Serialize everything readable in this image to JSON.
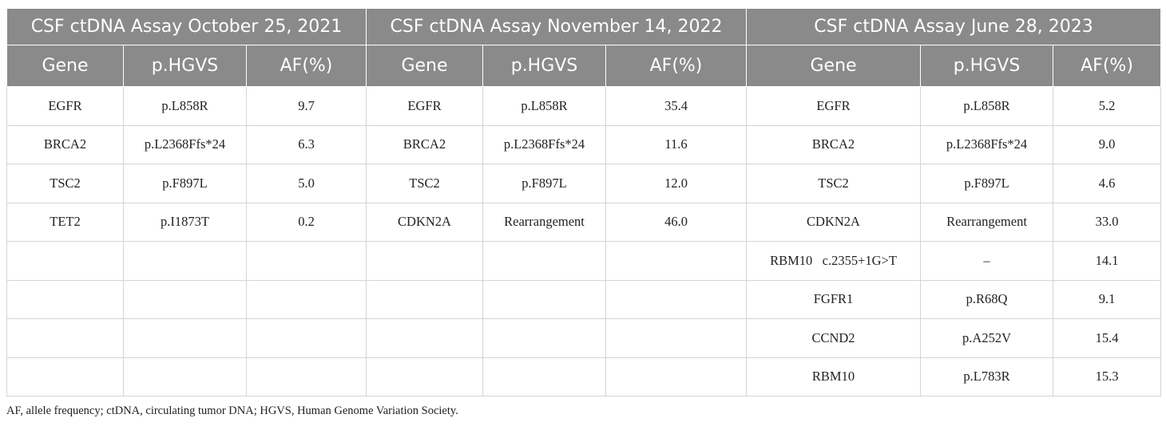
{
  "table": {
    "groups": [
      {
        "title": "CSF ctDNA Assay October 25, 2021"
      },
      {
        "title": "CSF ctDNA Assay November 14, 2022"
      },
      {
        "title": "CSF ctDNA Assay June 28, 2023"
      }
    ],
    "columns": [
      "Gene",
      "p.HGVS",
      "AF(%)"
    ],
    "rows": [
      [
        [
          "EGFR",
          "p.L858R",
          "9.7"
        ],
        [
          "EGFR",
          "p.L858R",
          "35.4"
        ],
        [
          "EGFR",
          "p.L858R",
          "5.2"
        ]
      ],
      [
        [
          "BRCA2",
          "p.L2368Ffs*24",
          "6.3"
        ],
        [
          "BRCA2",
          "p.L2368Ffs*24",
          "11.6"
        ],
        [
          "BRCA2",
          "p.L2368Ffs*24",
          "9.0"
        ]
      ],
      [
        [
          "TSC2",
          "p.F897L",
          "5.0"
        ],
        [
          "TSC2",
          "p.F897L",
          "12.0"
        ],
        [
          "TSC2",
          "p.F897L",
          "4.6"
        ]
      ],
      [
        [
          "TET2",
          "p.I1873T",
          "0.2"
        ],
        [
          "CDKN2A",
          "Rearrangement",
          "46.0"
        ],
        [
          "CDKN2A",
          "Rearrangement",
          "33.0"
        ]
      ],
      [
        [
          "",
          "",
          ""
        ],
        [
          "",
          "",
          ""
        ],
        [
          "RBM10   c.2355+1G>T",
          "–",
          "14.1"
        ]
      ],
      [
        [
          "",
          "",
          ""
        ],
        [
          "",
          "",
          ""
        ],
        [
          "FGFR1",
          "p.R68Q",
          "9.1"
        ]
      ],
      [
        [
          "",
          "",
          ""
        ],
        [
          "",
          "",
          ""
        ],
        [
          "CCND2",
          "p.A252V",
          "15.4"
        ]
      ],
      [
        [
          "",
          "",
          ""
        ],
        [
          "",
          "",
          ""
        ],
        [
          "RBM10",
          "p.L783R",
          "15.3"
        ]
      ]
    ]
  },
  "footnote": "AF, allele frequency; ctDNA, circulating tumor DNA; HGVS, Human Genome Variation Society."
}
